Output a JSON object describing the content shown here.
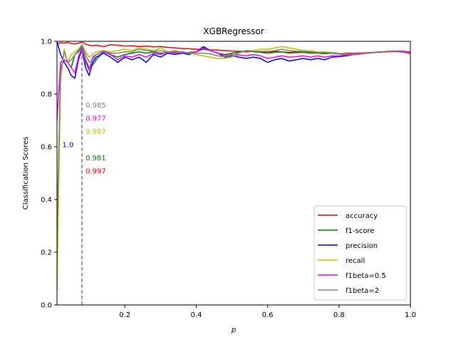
{
  "chart_data": {
    "type": "line",
    "title": "XGBRegressor",
    "xlabel": "p",
    "ylabel": "Classification Scores",
    "xlim": [
      0.01,
      1.0
    ],
    "ylim": [
      0.0,
      1.0
    ],
    "xticks": [
      0.2,
      0.4,
      0.6,
      0.8,
      1.0
    ],
    "xtick_labels": [
      "0.2",
      "0.4",
      "0.6",
      "0.8",
      "1.0"
    ],
    "yticks": [
      0.0,
      0.2,
      0.4,
      0.6,
      0.8,
      1.0
    ],
    "ytick_labels": [
      "0.0",
      "0.2",
      "0.4",
      "0.6",
      "0.8",
      "1.0"
    ],
    "grid": false,
    "legend_position": "lower-right",
    "x": [
      0.01,
      0.02,
      0.03,
      0.04,
      0.05,
      0.06,
      0.07,
      0.08,
      0.09,
      0.1,
      0.11,
      0.12,
      0.14,
      0.16,
      0.18,
      0.2,
      0.22,
      0.24,
      0.26,
      0.28,
      0.3,
      0.32,
      0.34,
      0.36,
      0.38,
      0.4,
      0.42,
      0.44,
      0.46,
      0.48,
      0.5,
      0.52,
      0.54,
      0.56,
      0.58,
      0.6,
      0.62,
      0.64,
      0.66,
      0.68,
      0.7,
      0.72,
      0.74,
      0.76,
      0.78,
      0.8,
      0.82,
      0.84,
      0.86,
      0.88,
      0.9,
      0.92,
      0.94,
      0.96,
      0.98,
      1.0
    ],
    "series": [
      {
        "name": "accuracy",
        "color": "#ff0000",
        "values": [
          0.99,
          0.995,
          0.993,
          0.996,
          0.992,
          0.99,
          0.993,
          0.997,
          0.99,
          0.985,
          0.983,
          0.985,
          0.98,
          0.987,
          0.985,
          0.982,
          0.983,
          0.98,
          0.982,
          0.979,
          0.98,
          0.977,
          0.975,
          0.973,
          0.972,
          0.97,
          0.97,
          0.968,
          0.967,
          0.965,
          0.963,
          0.962,
          0.96,
          0.962,
          0.96,
          0.96,
          0.962,
          0.96,
          0.958,
          0.96,
          0.958,
          0.958,
          0.957,
          0.955,
          0.955,
          0.953,
          0.955,
          0.955,
          0.956,
          0.957,
          0.958,
          0.96,
          0.962,
          0.963,
          0.962,
          0.96
        ]
      },
      {
        "name": "f1-score",
        "color": "#008000",
        "values": [
          0.2,
          0.9,
          0.93,
          0.92,
          0.9,
          0.95,
          0.96,
          0.981,
          0.93,
          0.9,
          0.91,
          0.93,
          0.96,
          0.95,
          0.94,
          0.95,
          0.955,
          0.96,
          0.955,
          0.96,
          0.955,
          0.957,
          0.96,
          0.955,
          0.958,
          0.96,
          0.97,
          0.965,
          0.955,
          0.95,
          0.955,
          0.96,
          0.965,
          0.96,
          0.958,
          0.955,
          0.958,
          0.96,
          0.955,
          0.957,
          0.958,
          0.955,
          0.955,
          0.953,
          0.955,
          0.952,
          0.95,
          0.953,
          0.955,
          0.955,
          0.958,
          0.96,
          0.96,
          0.962,
          0.958,
          0.955
        ]
      },
      {
        "name": "precision",
        "color": "#0000ff",
        "values": [
          1.0,
          0.95,
          0.92,
          0.9,
          0.87,
          0.86,
          0.93,
          0.97,
          0.9,
          0.87,
          0.92,
          0.94,
          0.955,
          0.94,
          0.92,
          0.94,
          0.93,
          0.94,
          0.92,
          0.95,
          0.94,
          0.955,
          0.95,
          0.955,
          0.95,
          0.96,
          0.98,
          0.965,
          0.955,
          0.94,
          0.945,
          0.94,
          0.935,
          0.94,
          0.935,
          0.92,
          0.93,
          0.935,
          0.925,
          0.93,
          0.935,
          0.93,
          0.935,
          0.93,
          0.94,
          0.942,
          0.945,
          0.95,
          0.952,
          0.955,
          0.958,
          0.96,
          0.96,
          0.963,
          0.962,
          0.958
        ]
      },
      {
        "name": "recall",
        "color": "#bfbf00",
        "values": [
          0.05,
          0.85,
          0.97,
          0.92,
          0.95,
          0.96,
          0.97,
          0.987,
          0.96,
          0.94,
          0.95,
          0.96,
          0.965,
          0.96,
          0.965,
          0.97,
          0.965,
          0.975,
          0.97,
          0.965,
          0.975,
          0.96,
          0.965,
          0.96,
          0.955,
          0.95,
          0.945,
          0.94,
          0.935,
          0.935,
          0.94,
          0.955,
          0.965,
          0.965,
          0.97,
          0.97,
          0.975,
          0.98,
          0.975,
          0.97,
          0.965,
          0.965,
          0.96,
          0.96,
          0.958,
          0.955,
          0.952,
          0.953,
          0.955,
          0.956,
          0.957,
          0.958,
          0.96,
          0.96,
          0.958,
          0.952
        ]
      },
      {
        "name": "f1beta=0.5",
        "color": "#ff00ff",
        "values": [
          0.7,
          0.92,
          0.93,
          0.92,
          0.9,
          0.88,
          0.94,
          0.977,
          0.92,
          0.89,
          0.94,
          0.95,
          0.96,
          0.95,
          0.93,
          0.945,
          0.94,
          0.95,
          0.94,
          0.955,
          0.95,
          0.96,
          0.955,
          0.96,
          0.955,
          0.96,
          0.975,
          0.965,
          0.955,
          0.945,
          0.95,
          0.948,
          0.945,
          0.95,
          0.945,
          0.935,
          0.94,
          0.945,
          0.94,
          0.942,
          0.945,
          0.94,
          0.945,
          0.94,
          0.945,
          0.945,
          0.948,
          0.95,
          0.952,
          0.955,
          0.958,
          0.96,
          0.96,
          0.963,
          0.962,
          0.958
        ]
      },
      {
        "name": "f1beta=2",
        "color": "#808080",
        "values": [
          0.3,
          0.88,
          0.96,
          0.92,
          0.93,
          0.95,
          0.965,
          0.985,
          0.95,
          0.92,
          0.93,
          0.95,
          0.963,
          0.955,
          0.955,
          0.96,
          0.96,
          0.97,
          0.965,
          0.962,
          0.965,
          0.958,
          0.962,
          0.957,
          0.956,
          0.955,
          0.955,
          0.952,
          0.945,
          0.942,
          0.947,
          0.957,
          0.965,
          0.962,
          0.962,
          0.962,
          0.965,
          0.97,
          0.965,
          0.963,
          0.962,
          0.96,
          0.957,
          0.957,
          0.956,
          0.953,
          0.951,
          0.953,
          0.955,
          0.955,
          0.957,
          0.959,
          0.96,
          0.961,
          0.958,
          0.953
        ]
      }
    ],
    "vline": {
      "x": 0.08,
      "color": "#808080",
      "style": "dashed"
    },
    "annotations": [
      {
        "text": "1.0",
        "x": 0.025,
        "y": 0.61,
        "color": "#0000ff"
      },
      {
        "text": "0.985",
        "x": 0.09,
        "y": 0.76,
        "color": "#808080"
      },
      {
        "text": "0.977",
        "x": 0.09,
        "y": 0.71,
        "color": "#ff00ff"
      },
      {
        "text": "0.987",
        "x": 0.09,
        "y": 0.66,
        "color": "#bfbf00"
      },
      {
        "text": "0.981",
        "x": 0.09,
        "y": 0.56,
        "color": "#008000"
      },
      {
        "text": "0.997",
        "x": 0.09,
        "y": 0.51,
        "color": "#ff0000"
      }
    ]
  }
}
